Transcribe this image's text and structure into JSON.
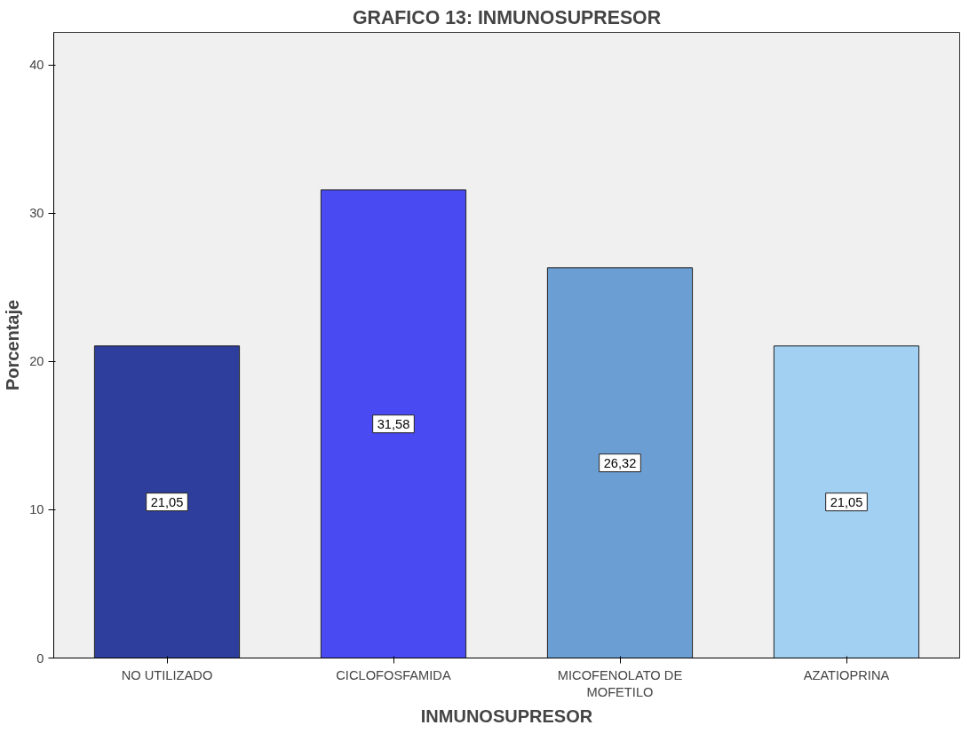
{
  "chart_data": {
    "type": "bar",
    "title": "GRAFICO 13: INMUNOSUPRESOR",
    "xlabel": "INMUNOSUPRESOR",
    "ylabel": "Porcentaje",
    "categories": [
      "NO UTILIZADO",
      "CICLOFOSFAMIDA",
      "MICOFENOLATO DE\nMOFETILO",
      "AZATIOPRINA"
    ],
    "values": [
      21.05,
      31.58,
      26.32,
      21.05
    ],
    "colors": [
      "#2e3e9c",
      "#4a4af2",
      "#6b9fd4",
      "#a2d0f2"
    ],
    "value_labels": [
      "21,05",
      "31,58",
      "26,32",
      "21,05"
    ],
    "ylim": [
      0,
      42.2
    ],
    "yticks": [
      0,
      10,
      20,
      30,
      40
    ],
    "grid": false
  }
}
